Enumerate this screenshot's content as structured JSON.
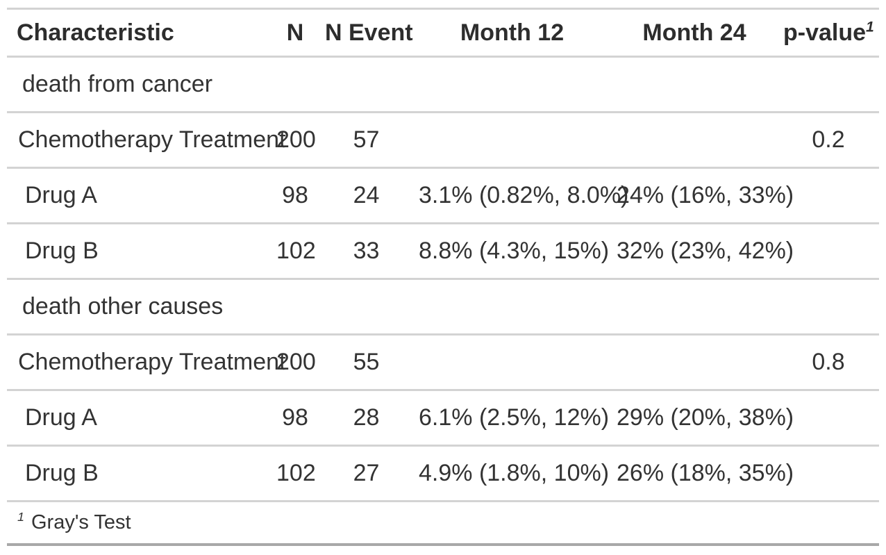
{
  "colors": {
    "background": "#FFFFFF",
    "text": "#333333",
    "header_text": "#2D2D2D",
    "border_light": "#D3D3D3",
    "border_dark": "#A8A8A8"
  },
  "chart_data": {
    "type": "table",
    "title": "",
    "columns": [
      "Characteristic",
      "N",
      "N Event",
      "Month 12",
      "Month 24",
      "p-value"
    ],
    "rows": [
      [
        "death from cancer",
        "",
        "",
        "",
        "",
        ""
      ],
      [
        "Chemotherapy Treatment",
        "200",
        "57",
        "",
        "",
        "0.2"
      ],
      [
        "Drug A",
        "98",
        "24",
        "3.1% (0.82%, 8.0%)",
        "24% (16%, 33%)",
        ""
      ],
      [
        "Drug B",
        "102",
        "33",
        "8.8% (4.3%, 15%)",
        "32% (23%, 42%)",
        ""
      ],
      [
        "death other causes",
        "",
        "",
        "",
        "",
        ""
      ],
      [
        "Chemotherapy Treatment",
        "200",
        "55",
        "",
        "",
        "0.8"
      ],
      [
        "Drug A",
        "98",
        "28",
        "6.1% (2.5%, 12%)",
        "29% (20%, 38%)",
        ""
      ],
      [
        "Drug B",
        "102",
        "27",
        "4.9% (1.8%, 10%)",
        "26% (18%, 35%)",
        ""
      ]
    ],
    "footnote": "1 Gray's Test"
  },
  "table": {
    "columns": [
      {
        "label": "Characteristic",
        "align": "left"
      },
      {
        "label": "N",
        "align": "center"
      },
      {
        "label": "N Event",
        "align": "center"
      },
      {
        "label": "Month 12",
        "align": "center"
      },
      {
        "label": "Month 24",
        "align": "center"
      },
      {
        "label": "p-value",
        "align": "center",
        "has_footnote_mark": true
      }
    ],
    "rows": [
      {
        "type": "group",
        "label": "death from cancer",
        "n": "",
        "n_event": "",
        "month12": "",
        "month24": "",
        "p": ""
      },
      {
        "type": "variable",
        "label": "Chemotherapy Treatment",
        "n": "200",
        "n_event": "57",
        "month12": "",
        "month24": "",
        "p": "0.2"
      },
      {
        "type": "level",
        "label": "Drug A",
        "n": "98",
        "n_event": "24",
        "month12": "3.1% (0.82%, 8.0%)",
        "month24": "24% (16%, 33%)",
        "p": ""
      },
      {
        "type": "level",
        "label": "Drug B",
        "n": "102",
        "n_event": "33",
        "month12": "8.8% (4.3%, 15%)",
        "month24": "32% (23%, 42%)",
        "p": ""
      },
      {
        "type": "group",
        "label": "death other causes",
        "n": "",
        "n_event": "",
        "month12": "",
        "month24": "",
        "p": ""
      },
      {
        "type": "variable",
        "label": "Chemotherapy Treatment",
        "n": "200",
        "n_event": "55",
        "month12": "",
        "month24": "",
        "p": "0.8"
      },
      {
        "type": "level",
        "label": "Drug A",
        "n": "98",
        "n_event": "28",
        "month12": "6.1% (2.5%, 12%)",
        "month24": "29% (20%, 38%)",
        "p": ""
      },
      {
        "type": "level",
        "label": "Drug B",
        "n": "102",
        "n_event": "27",
        "month12": "4.9% (1.8%, 10%)",
        "month24": "26% (18%, 35%)",
        "p": ""
      }
    ],
    "footnote": {
      "mark": "1",
      "text": "Gray's Test"
    }
  }
}
